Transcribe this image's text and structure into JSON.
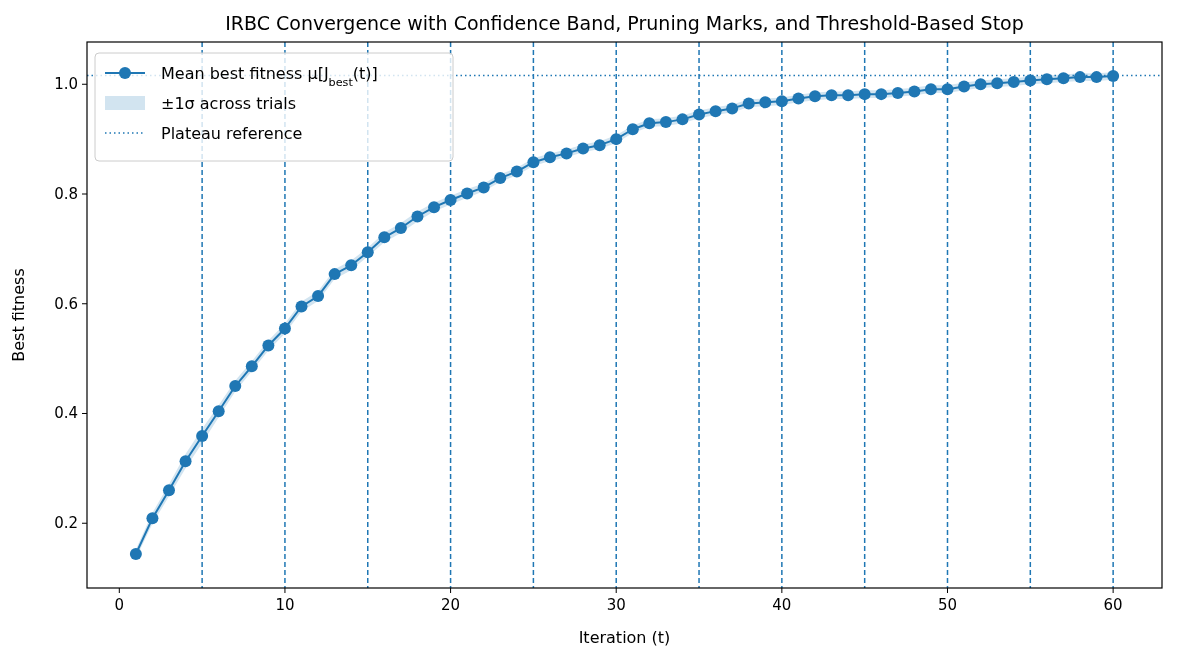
{
  "chart_data": {
    "type": "line",
    "title": "IRBC Convergence with Confidence Band, Pruning Marks, and Threshold-Based Stop",
    "xlabel": "Iteration (t)",
    "ylabel": "Best fitness",
    "x": [
      1,
      2,
      3,
      4,
      5,
      6,
      7,
      8,
      9,
      10,
      11,
      12,
      13,
      14,
      15,
      16,
      17,
      18,
      19,
      20,
      21,
      22,
      23,
      24,
      25,
      26,
      27,
      28,
      29,
      30,
      31,
      32,
      33,
      34,
      35,
      36,
      37,
      38,
      39,
      40,
      41,
      42,
      43,
      44,
      45,
      46,
      47,
      48,
      49,
      50,
      51,
      52,
      53,
      54,
      55,
      56,
      57,
      58,
      59,
      60
    ],
    "series": [
      {
        "name": "Mean best fitness μ[J$_{best}$(t)]",
        "color": "#1f77b4",
        "values": [
          0.144,
          0.209,
          0.26,
          0.313,
          0.359,
          0.404,
          0.45,
          0.486,
          0.524,
          0.555,
          0.595,
          0.614,
          0.654,
          0.67,
          0.694,
          0.721,
          0.738,
          0.759,
          0.776,
          0.789,
          0.801,
          0.812,
          0.829,
          0.841,
          0.858,
          0.867,
          0.874,
          0.883,
          0.889,
          0.9,
          0.918,
          0.929,
          0.931,
          0.936,
          0.945,
          0.951,
          0.956,
          0.965,
          0.967,
          0.969,
          0.974,
          0.978,
          0.98,
          0.98,
          0.982,
          0.982,
          0.984,
          0.987,
          0.991,
          0.991,
          0.996,
          1.0,
          1.002,
          1.004,
          1.007,
          1.009,
          1.011,
          1.013,
          1.013,
          1.015
        ],
        "lower": [
          0.136,
          0.199,
          0.249,
          0.3,
          0.346,
          0.393,
          0.44,
          0.477,
          0.515,
          0.546,
          0.586,
          0.605,
          0.645,
          0.661,
          0.686,
          0.712,
          0.729,
          0.75,
          0.768,
          0.781,
          0.793,
          0.805,
          0.822,
          0.834,
          0.851,
          0.86,
          0.867,
          0.876,
          0.882,
          0.893,
          0.911,
          0.922,
          0.924,
          0.929,
          0.938,
          0.944,
          0.949,
          0.958,
          0.96,
          0.962,
          0.967,
          0.971,
          0.973,
          0.973,
          0.975,
          0.975,
          0.977,
          0.98,
          0.984,
          0.984,
          0.989,
          0.993,
          0.995,
          0.997,
          1.0,
          1.002,
          1.004,
          1.006,
          1.006,
          1.008
        ],
        "upper": [
          0.152,
          0.219,
          0.271,
          0.326,
          0.372,
          0.415,
          0.46,
          0.495,
          0.533,
          0.564,
          0.604,
          0.623,
          0.663,
          0.679,
          0.702,
          0.73,
          0.747,
          0.768,
          0.784,
          0.797,
          0.809,
          0.819,
          0.836,
          0.848,
          0.865,
          0.874,
          0.881,
          0.89,
          0.896,
          0.907,
          0.925,
          0.936,
          0.938,
          0.943,
          0.952,
          0.958,
          0.963,
          0.972,
          0.974,
          0.976,
          0.981,
          0.985,
          0.987,
          0.987,
          0.989,
          0.989,
          0.991,
          0.994,
          0.998,
          0.998,
          1.003,
          1.007,
          1.009,
          1.011,
          1.014,
          1.016,
          1.018,
          1.02,
          1.02,
          1.022
        ]
      }
    ],
    "xlim": [
      -1.95,
      62.95
    ],
    "ylim": [
      0.082,
      1.077
    ],
    "xticks": [
      0,
      10,
      20,
      30,
      40,
      50,
      60
    ],
    "yticks": [
      0.2,
      0.4,
      0.6,
      0.8,
      {
        "value": 1.0,
        "label": "1.0"
      }
    ],
    "annotations": [
      "±1σ across trials"
    ],
    "marker": "circle",
    "line_style": "solid",
    "legend": "top left",
    "ref_lines": [
      {
        "axis": "y",
        "value": 1.016,
        "label": "Plateau reference",
        "color": "#1f77b4",
        "line_style": "dotted"
      },
      {
        "axis": "x",
        "value": 5,
        "color": "#1f77b4",
        "line_style": "dashed"
      },
      {
        "axis": "x",
        "value": 10,
        "color": "#1f77b4",
        "line_style": "dashed"
      },
      {
        "axis": "x",
        "value": 15,
        "color": "#1f77b4",
        "line_style": "dashed"
      },
      {
        "axis": "x",
        "value": 20,
        "color": "#1f77b4",
        "line_style": "dashed"
      },
      {
        "axis": "x",
        "value": 25,
        "color": "#1f77b4",
        "line_style": "dashed"
      },
      {
        "axis": "x",
        "value": 30,
        "color": "#1f77b4",
        "line_style": "dashed"
      },
      {
        "axis": "x",
        "value": 35,
        "color": "#1f77b4",
        "line_style": "dashed"
      },
      {
        "axis": "x",
        "value": 40,
        "color": "#1f77b4",
        "line_style": "dashed"
      },
      {
        "axis": "x",
        "value": 45,
        "color": "#1f77b4",
        "line_style": "dashed"
      },
      {
        "axis": "x",
        "value": 50,
        "color": "#1f77b4",
        "line_style": "dashed"
      },
      {
        "axis": "x",
        "value": 55,
        "color": "#1f77b4",
        "line_style": "dashed"
      },
      {
        "axis": "x",
        "value": 60,
        "color": "#1f77b4",
        "line_style": "dashed"
      }
    ]
  }
}
